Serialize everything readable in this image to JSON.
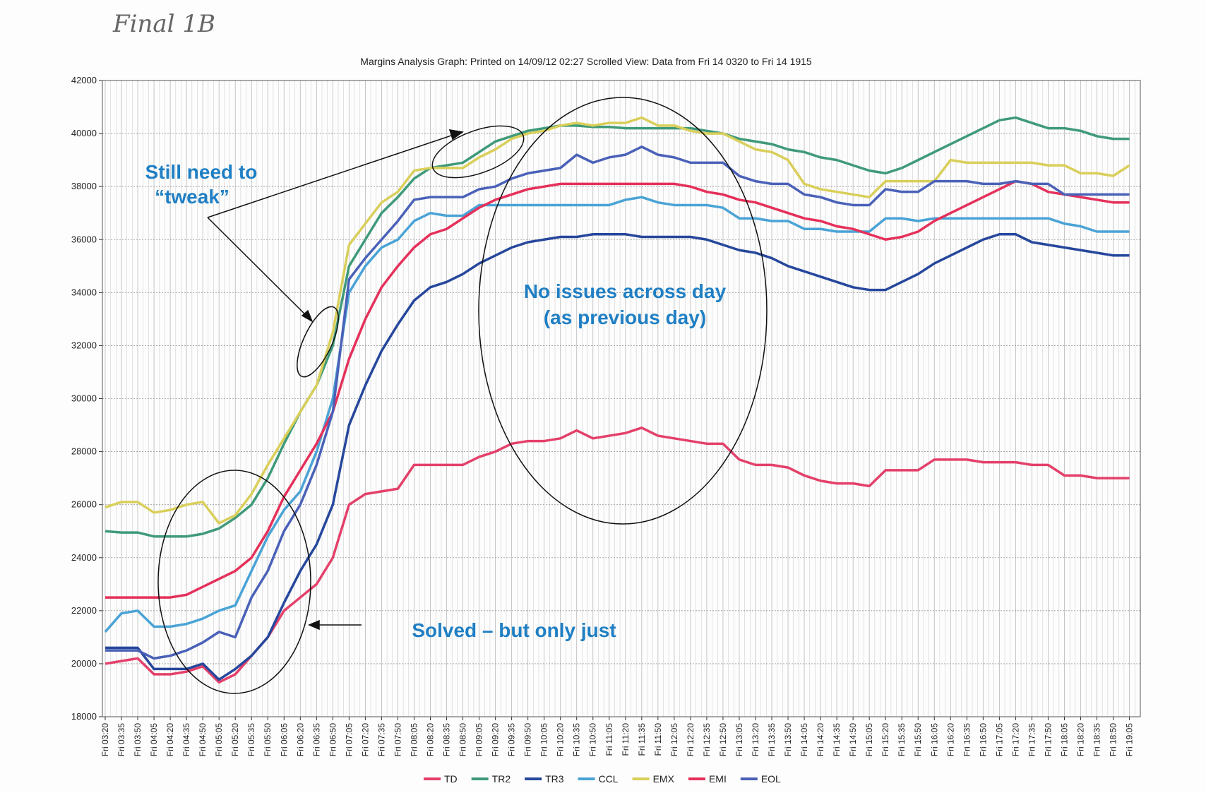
{
  "handwritten_label": "Final 1B",
  "chart_data": {
    "type": "line",
    "title": "Margins Analysis Graph: Printed on 14/09/12 02:27 Scrolled View: Data from Fri 14 0320  to Fri 14 1915",
    "annotations": [
      "Still need to",
      "“tweak”",
      "No issues across day",
      "(as previous day)",
      "Solved – but only just"
    ],
    "categories": [
      "Fri 03:20",
      "Fri 03:35",
      "Fri 03:50",
      "Fri 04:05",
      "Fri 04:20",
      "Fri 04:35",
      "Fri 04:50",
      "Fri 05:05",
      "Fri 05:20",
      "Fri 05:35",
      "Fri 05:50",
      "Fri 06:05",
      "Fri 06:20",
      "Fri 06:35",
      "Fri 06:50",
      "Fri 07:05",
      "Fri 07:20",
      "Fri 07:35",
      "Fri 07:50",
      "Fri 08:05",
      "Fri 08:20",
      "Fri 08:35",
      "Fri 08:50",
      "Fri 09:05",
      "Fri 09:20",
      "Fri 09:35",
      "Fri 09:50",
      "Fri 10:05",
      "Fri 10:20",
      "Fri 10:35",
      "Fri 10:50",
      "Fri 11:05",
      "Fri 11:20",
      "Fri 11:35",
      "Fri 11:50",
      "Fri 12:05",
      "Fri 12:20",
      "Fri 12:35",
      "Fri 12:50",
      "Fri 13:05",
      "Fri 13:20",
      "Fri 13:35",
      "Fri 13:50",
      "Fri 14:05",
      "Fri 14:20",
      "Fri 14:35",
      "Fri 14:50",
      "Fri 15:05",
      "Fri 15:20",
      "Fri 15:35",
      "Fri 15:50",
      "Fri 16:05",
      "Fri 16:20",
      "Fri 16:35",
      "Fri 16:50",
      "Fri 17:05",
      "Fri 17:20",
      "Fri 17:35",
      "Fri 17:50",
      "Fri 18:05",
      "Fri 18:20",
      "Fri 18:35",
      "Fri 18:50",
      "Fri 19:05"
    ],
    "ylim": [
      18000,
      42000
    ],
    "yticks": [
      18000,
      20000,
      22000,
      24000,
      26000,
      28000,
      30000,
      32000,
      34000,
      36000,
      38000,
      40000,
      42000
    ],
    "grid": true,
    "series": [
      {
        "name": "TD",
        "color": "#e4406a",
        "values": [
          20000,
          20100,
          20200,
          19600,
          19600,
          19700,
          19900,
          19300,
          19600,
          20300,
          21000,
          22000,
          22500,
          23000,
          24000,
          26000,
          26400,
          26500,
          26600,
          27500,
          27500,
          27500,
          27500,
          27800,
          28000,
          28300,
          28400,
          28400,
          28500,
          28800,
          28500,
          28600,
          28700,
          28900,
          28600,
          28500,
          28400,
          28300,
          28300,
          27700,
          27500,
          27500,
          27400,
          27100,
          26900,
          26800,
          26800,
          26700,
          27300,
          27300,
          27300,
          27700,
          27700,
          27700,
          27600,
          27600,
          27600,
          27500,
          27500,
          27100,
          27100,
          27000,
          27000,
          27000
        ]
      },
      {
        "name": "TR2",
        "color": "#3f9a7a",
        "values": [
          25000,
          24950,
          24950,
          24800,
          24800,
          24800,
          24900,
          25100,
          25500,
          26000,
          27000,
          28300,
          29500,
          30500,
          32000,
          35000,
          36000,
          37000,
          37600,
          38300,
          38700,
          38800,
          38900,
          39300,
          39700,
          39900,
          40100,
          40200,
          40300,
          40300,
          40250,
          40250,
          40200,
          40200,
          40200,
          40200,
          40200,
          40100,
          40000,
          39800,
          39700,
          39600,
          39400,
          39300,
          39100,
          39000,
          38800,
          38600,
          38500,
          38700,
          39000,
          39300,
          39600,
          39900,
          40200,
          40500,
          40600,
          40400,
          40200,
          40200,
          40100,
          39900,
          39800,
          39800
        ]
      },
      {
        "name": "TR3",
        "color": "#26479c",
        "values": [
          20600,
          20600,
          20600,
          19800,
          19800,
          19800,
          20000,
          19400,
          19800,
          20300,
          21000,
          22300,
          23500,
          24500,
          26000,
          29000,
          30500,
          31800,
          32800,
          33700,
          34200,
          34400,
          34700,
          35100,
          35400,
          35700,
          35900,
          36000,
          36100,
          36100,
          36200,
          36200,
          36200,
          36100,
          36100,
          36100,
          36100,
          36000,
          35800,
          35600,
          35500,
          35300,
          35000,
          34800,
          34600,
          34400,
          34200,
          34100,
          34100,
          34400,
          34700,
          35100,
          35400,
          35700,
          36000,
          36200,
          36200,
          35900,
          35800,
          35700,
          35600,
          35500,
          35400,
          35400
        ]
      },
      {
        "name": "CCL",
        "color": "#4aa3d6",
        "values": [
          21200,
          21900,
          22000,
          21400,
          21400,
          21500,
          21700,
          22000,
          22200,
          23500,
          24800,
          25800,
          26500,
          28000,
          30000,
          34000,
          35000,
          35700,
          36000,
          36700,
          37000,
          36900,
          36900,
          37300,
          37300,
          37300,
          37300,
          37300,
          37300,
          37300,
          37300,
          37300,
          37500,
          37600,
          37400,
          37300,
          37300,
          37300,
          37200,
          36800,
          36800,
          36700,
          36700,
          36400,
          36400,
          36300,
          36300,
          36300,
          36800,
          36800,
          36700,
          36800,
          36800,
          36800,
          36800,
          36800,
          36800,
          36800,
          36800,
          36600,
          36500,
          36300,
          36300,
          36300
        ]
      },
      {
        "name": "EMX",
        "color": "#d9cf5a",
        "values": [
          25900,
          26100,
          26100,
          25700,
          25800,
          26000,
          26100,
          25300,
          25600,
          26400,
          27500,
          28500,
          29500,
          30500,
          32500,
          35800,
          36600,
          37400,
          37800,
          38600,
          38700,
          38700,
          38700,
          39100,
          39400,
          39800,
          40000,
          40100,
          40300,
          40400,
          40300,
          40400,
          40400,
          40600,
          40300,
          40300,
          40100,
          40000,
          40000,
          39700,
          39400,
          39300,
          39000,
          38100,
          37900,
          37800,
          37700,
          37600,
          38200,
          38200,
          38200,
          38200,
          39000,
          38900,
          38900,
          38900,
          38900,
          38900,
          38800,
          38800,
          38500,
          38500,
          38400,
          38800
        ]
      },
      {
        "name": "EMI",
        "color": "#e5305a",
        "values": [
          22500,
          22500,
          22500,
          22500,
          22500,
          22600,
          22900,
          23200,
          23500,
          24000,
          25000,
          26300,
          27300,
          28300,
          29500,
          31500,
          33000,
          34200,
          35000,
          35700,
          36200,
          36400,
          36800,
          37200,
          37500,
          37700,
          37900,
          38000,
          38100,
          38100,
          38100,
          38100,
          38100,
          38100,
          38100,
          38100,
          38000,
          37800,
          37700,
          37500,
          37400,
          37200,
          37000,
          36800,
          36700,
          36500,
          36400,
          36200,
          36000,
          36100,
          36300,
          36700,
          37000,
          37300,
          37600,
          37900,
          38200,
          38100,
          37800,
          37700,
          37600,
          37500,
          37400,
          37400
        ]
      },
      {
        "name": "EOL",
        "color": "#4a61b8",
        "values": [
          20500,
          20500,
          20500,
          20200,
          20300,
          20500,
          20800,
          21200,
          21000,
          22500,
          23500,
          25000,
          26000,
          27500,
          29500,
          34500,
          35300,
          36000,
          36700,
          37500,
          37600,
          37600,
          37600,
          37900,
          38000,
          38300,
          38500,
          38600,
          38700,
          39200,
          38900,
          39100,
          39200,
          39500,
          39200,
          39100,
          38900,
          38900,
          38900,
          38400,
          38200,
          38100,
          38100,
          37700,
          37600,
          37400,
          37300,
          37300,
          37900,
          37800,
          37800,
          38200,
          38200,
          38200,
          38100,
          38100,
          38200,
          38100,
          38100,
          37700,
          37700,
          37700,
          37700,
          37700
        ]
      }
    ]
  }
}
